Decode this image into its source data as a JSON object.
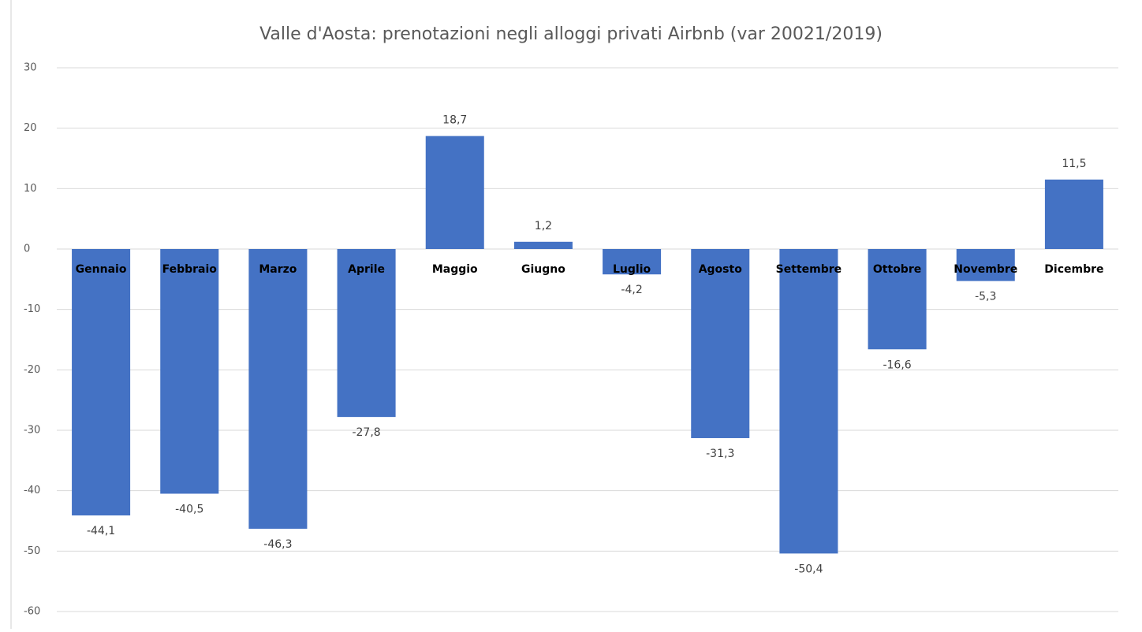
{
  "chart_data": {
    "type": "bar",
    "title": "Valle d'Aosta: prenotazioni negli alloggi privati Airbnb (var 20021/2019)",
    "categories": [
      "Gennaio",
      "Febbraio",
      "Marzo",
      "Aprile",
      "Maggio",
      "Giugno",
      "Luglio",
      "Agosto",
      "Settembre",
      "Ottobre",
      "Novembre",
      "Dicembre"
    ],
    "values": [
      -44.1,
      -40.5,
      -46.3,
      -27.8,
      18.7,
      1.2,
      -4.2,
      -31.3,
      -50.4,
      -16.6,
      -5.3,
      11.5
    ],
    "value_labels": [
      "-44,1",
      "-40,5",
      "-46,3",
      "-27,8",
      "18,7",
      "1,2",
      "-4,2",
      "-31,3",
      "-50,4",
      "-16,6",
      "-5,3",
      "11,5"
    ],
    "color": "#4472c4",
    "ylim": [
      -60,
      30
    ],
    "yticks": [
      30,
      20,
      10,
      0,
      -10,
      -20,
      -30,
      -40,
      -50,
      -60
    ],
    "grid": true
  }
}
